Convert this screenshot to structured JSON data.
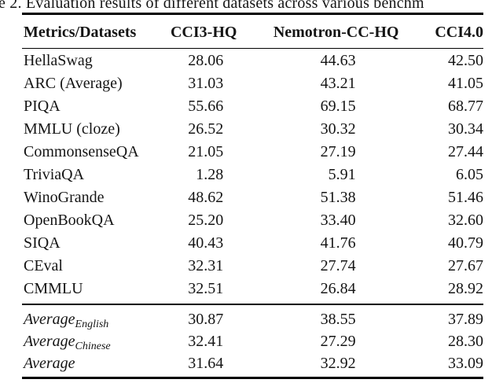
{
  "caption_visible": "e 2. Evaluation results of different datasets across various benchm",
  "table": {
    "columns": [
      "Metrics/Datasets",
      "CCI3-HQ",
      "Nemotron-CC-HQ",
      "CCI4.0"
    ],
    "rows": [
      {
        "label": "HellaSwag",
        "values": [
          "28.06",
          "44.63",
          "42.50"
        ]
      },
      {
        "label": "ARC (Average)",
        "values": [
          "31.03",
          "43.21",
          "41.05"
        ]
      },
      {
        "label": "PIQA",
        "values": [
          "55.66",
          "69.15",
          "68.77"
        ]
      },
      {
        "label": "MMLU (cloze)",
        "values": [
          "26.52",
          "30.32",
          "30.34"
        ]
      },
      {
        "label": "CommonsenseQA",
        "values": [
          "21.05",
          "27.19",
          "27.44"
        ]
      },
      {
        "label": "TriviaQA",
        "values": [
          "1.28",
          "5.91",
          "6.05"
        ]
      },
      {
        "label": "WinoGrande",
        "values": [
          "48.62",
          "51.38",
          "51.46"
        ]
      },
      {
        "label": "OpenBookQA",
        "values": [
          "25.20",
          "33.40",
          "32.60"
        ]
      },
      {
        "label": "SIQA",
        "values": [
          "40.43",
          "41.76",
          "40.79"
        ]
      },
      {
        "label": "CEval",
        "values": [
          "32.31",
          "27.74",
          "27.67"
        ]
      },
      {
        "label": "CMMLU",
        "values": [
          "32.51",
          "26.84",
          "28.92"
        ]
      }
    ],
    "summary_rows": [
      {
        "label": "Average",
        "sub": "English",
        "values": [
          "30.87",
          "38.55",
          "37.89"
        ]
      },
      {
        "label": "Average",
        "sub": "Chinese",
        "values": [
          "32.41",
          "27.29",
          "28.30"
        ]
      },
      {
        "label": "Average",
        "sub": "",
        "values": [
          "31.64",
          "32.92",
          "33.09"
        ]
      }
    ]
  },
  "chart_data": {
    "type": "table",
    "title": "e 2. Evaluation results of different datasets across various benchm",
    "columns": [
      "Metrics/Datasets",
      "CCI3-HQ",
      "Nemotron-CC-HQ",
      "CCI4.0"
    ],
    "categories": [
      "HellaSwag",
      "ARC (Average)",
      "PIQA",
      "MMLU (cloze)",
      "CommonsenseQA",
      "TriviaQA",
      "WinoGrande",
      "OpenBookQA",
      "SIQA",
      "CEval",
      "CMMLU",
      "Average English",
      "Average Chinese",
      "Average"
    ],
    "series": [
      {
        "name": "CCI3-HQ",
        "values": [
          28.06,
          31.03,
          55.66,
          26.52,
          21.05,
          1.28,
          48.62,
          25.2,
          40.43,
          32.31,
          32.51,
          30.87,
          32.41,
          31.64
        ]
      },
      {
        "name": "Nemotron-CC-HQ",
        "values": [
          44.63,
          43.21,
          69.15,
          30.32,
          27.19,
          5.91,
          51.38,
          33.4,
          41.76,
          27.74,
          26.84,
          38.55,
          27.29,
          32.92
        ]
      },
      {
        "name": "CCI4.0",
        "values": [
          42.5,
          41.05,
          68.77,
          30.34,
          27.44,
          6.05,
          51.46,
          32.6,
          40.79,
          27.67,
          28.92,
          37.89,
          28.3,
          33.09
        ]
      }
    ]
  },
  "colors": {
    "background": "#ffffff",
    "text": "#151515",
    "rule": "#000000"
  }
}
